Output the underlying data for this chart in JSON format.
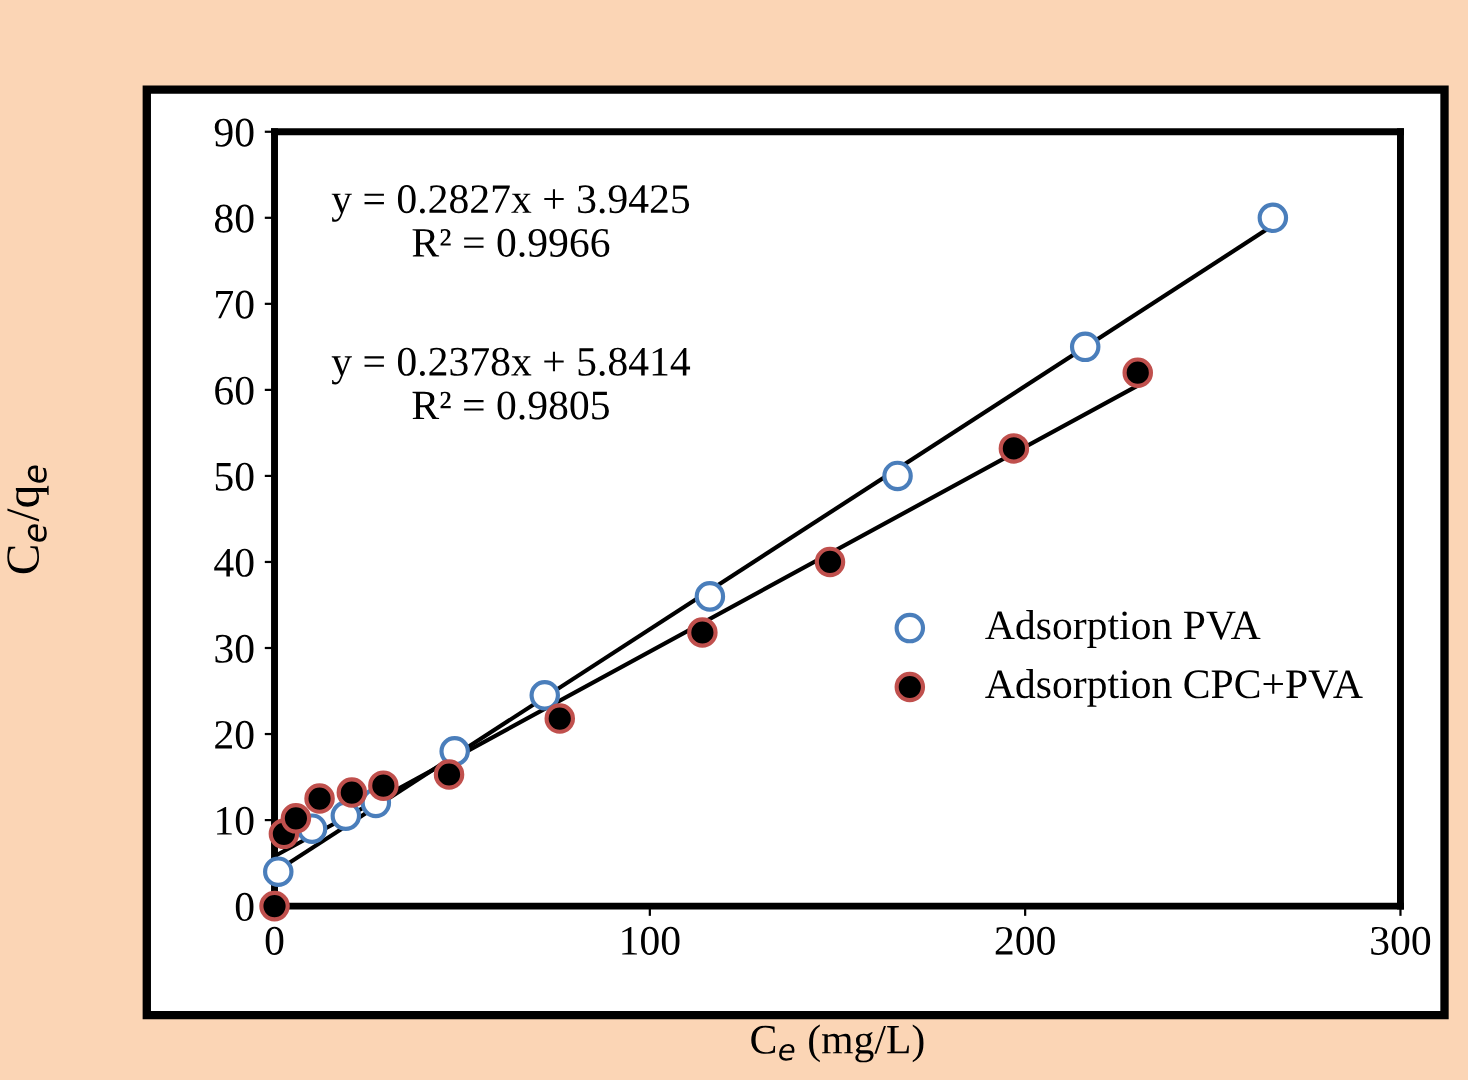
{
  "chart_data": {
    "type": "scatter",
    "xlabel": "C$_{e}$ (mg/L)",
    "ylabel": "C$_{e}$/q$_{e}$",
    "xlim": [
      0,
      300
    ],
    "xticks": [
      0,
      100,
      200,
      300
    ],
    "ylim": [
      0,
      90
    ],
    "yticks": [
      0,
      10,
      20,
      30,
      40,
      50,
      60,
      70,
      80,
      90
    ],
    "grid": false,
    "legend": "right",
    "marker": "circle",
    "annotations": [
      "y = 0.2827x + 3.9425\nR² = 0.9966",
      "y = 0.2378x + 5.8414\nR² = 0.9805"
    ],
    "series": [
      {
        "name": "Adsorption PVA",
        "color": "#4a7ebb",
        "x": [
          1,
          10,
          19,
          27,
          48,
          72,
          116,
          166,
          216,
          266
        ],
        "values": [
          4,
          9,
          10.5,
          12,
          18,
          24.5,
          36,
          50,
          65,
          80
        ]
      },
      {
        "name": "Adsorption CPC+PVA",
        "color": "#000000",
        "x": [
          0,
          2.5,
          5.7,
          12,
          20.6,
          29,
          46.5,
          76,
          114,
          148,
          197,
          230
        ],
        "values": [
          0,
          8.4,
          10.2,
          12.5,
          13.2,
          14,
          15.3,
          21.8,
          31.8,
          40,
          53.2,
          62
        ]
      },
      {
        "type": "line",
        "marker": "none",
        "color": "#000000",
        "x": [
          1,
          266
        ],
        "values": [
          4.2,
          79.1
        ]
      },
      {
        "type": "line",
        "marker": "none",
        "color": "#000000",
        "x": [
          0,
          230
        ],
        "values": [
          5.8,
          60.5
        ]
      }
    ]
  }
}
